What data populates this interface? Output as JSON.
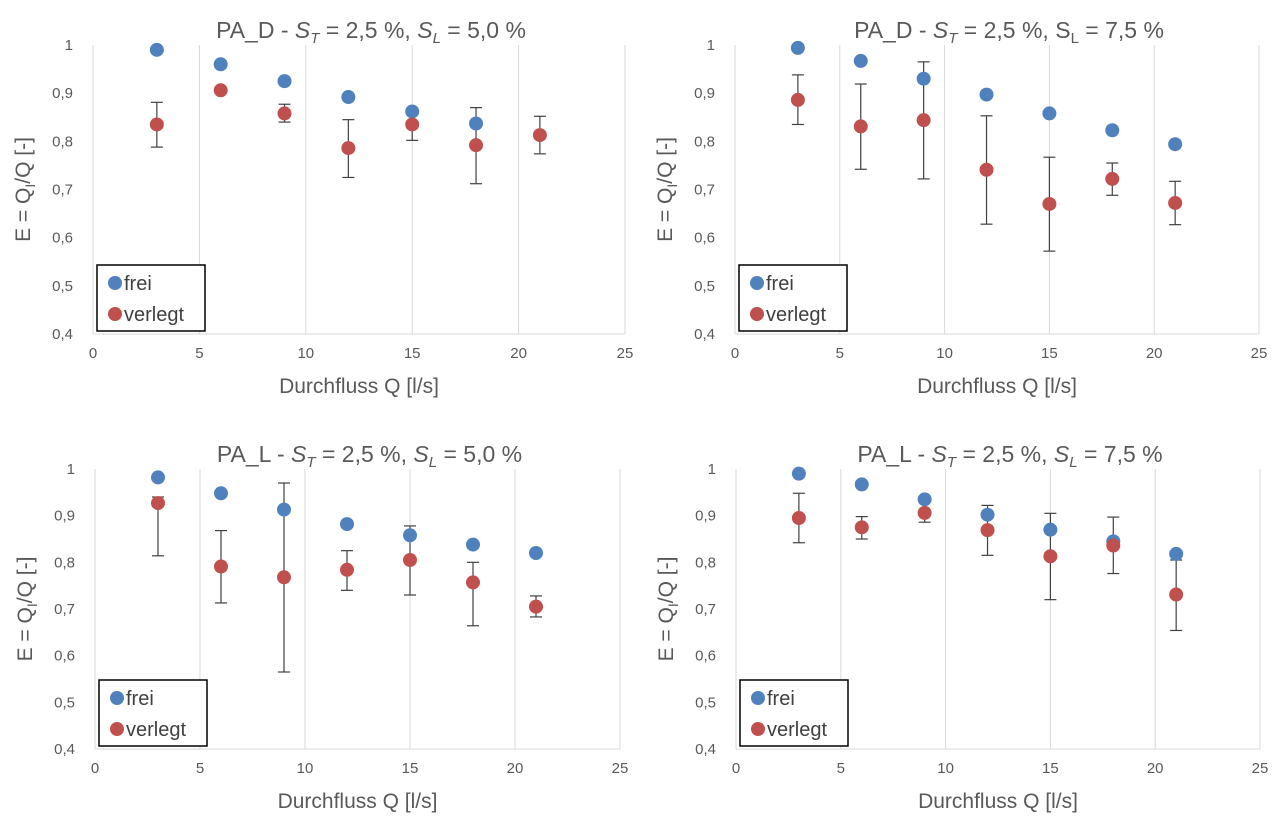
{
  "chart_data": [
    {
      "type": "scatter",
      "title": {
        "prefix": "PA_D - ",
        "st_sym": "S",
        "st_sub": "T",
        "st_val": " = 2,5 %, ",
        "sl_sym": "S",
        "sl_sub": "L",
        "sl_val": " = 5,0 %",
        "sl_italic": true
      },
      "xlabel": "Durchfluss Q [l/s]",
      "ylabel": {
        "pre": "E = Q",
        "sub": "I",
        "post": "/Q [-]"
      },
      "xlim": [
        0,
        25
      ],
      "ylim": [
        0.4,
        1
      ],
      "x_ticks": [
        "0",
        "5",
        "10",
        "15",
        "20",
        "25"
      ],
      "y_ticks": [
        "0,4",
        "0,5",
        "0,6",
        "0,7",
        "0,8",
        "0,9",
        "1"
      ],
      "grid": "vertical",
      "legend": "bottom-left",
      "series": [
        {
          "name": "frei",
          "color": "#4f81bd",
          "x": [
            3,
            6,
            9,
            12,
            15,
            18
          ],
          "y": [
            0.99,
            0.96,
            0.925,
            0.892,
            0.862,
            0.837
          ]
        },
        {
          "name": "verlegt",
          "color": "#c0504d",
          "x": [
            3,
            6,
            9,
            12,
            15,
            18,
            21
          ],
          "y": [
            0.835,
            0.906,
            0.858,
            0.786,
            0.835,
            0.792,
            0.813
          ],
          "err_low": [
            0.788,
            null,
            0.84,
            0.725,
            0.802,
            0.712,
            0.774
          ],
          "err_high": [
            0.881,
            null,
            0.877,
            0.845,
            0.868,
            0.87,
            0.852
          ]
        }
      ]
    },
    {
      "type": "scatter",
      "title": {
        "prefix": "PA_D - ",
        "st_sym": "S",
        "st_sub": "T",
        "st_val": " = 2,5 %, ",
        "sl_sym": "S",
        "sl_sub": "L",
        "sl_val": " = 7,5 %",
        "sl_italic": false
      },
      "xlabel": "Durchfluss Q [l/s]",
      "ylabel": {
        "pre": "E = Q",
        "sub": "I",
        "post": "/Q [-]"
      },
      "xlim": [
        0,
        25
      ],
      "ylim": [
        0.4,
        1
      ],
      "x_ticks": [
        "0",
        "5",
        "10",
        "15",
        "20",
        "25"
      ],
      "y_ticks": [
        "0,4",
        "0,5",
        "0,6",
        "0,7",
        "0,8",
        "0,9",
        "1"
      ],
      "grid": "vertical",
      "legend": "bottom-left",
      "series": [
        {
          "name": "frei",
          "color": "#4f81bd",
          "x": [
            3,
            6,
            9,
            12,
            15,
            18,
            21
          ],
          "y": [
            0.994,
            0.967,
            0.93,
            0.897,
            0.858,
            0.823,
            0.794
          ]
        },
        {
          "name": "verlegt",
          "color": "#c0504d",
          "x": [
            3,
            6,
            9,
            12,
            15,
            18,
            21
          ],
          "y": [
            0.886,
            0.831,
            0.844,
            0.741,
            0.67,
            0.722,
            0.672
          ],
          "err_low": [
            0.835,
            0.742,
            0.722,
            0.628,
            0.572,
            0.688,
            0.627
          ],
          "err_high": [
            0.938,
            0.919,
            0.965,
            0.853,
            0.767,
            0.755,
            0.717
          ]
        }
      ]
    },
    {
      "type": "scatter",
      "title": {
        "prefix": "PA_L - ",
        "st_sym": "S",
        "st_sub": "T",
        "st_val": " = 2,5 %, ",
        "sl_sym": "S",
        "sl_sub": "L",
        "sl_val": " = 5,0 %",
        "sl_italic": true
      },
      "xlabel": "Durchfluss Q [l/s]",
      "ylabel": {
        "pre": "E = Q",
        "sub": "I",
        "post": "/Q [-]"
      },
      "xlim": [
        0,
        25
      ],
      "ylim": [
        0.4,
        1
      ],
      "x_ticks": [
        "0",
        "5",
        "10",
        "15",
        "20",
        "25"
      ],
      "y_ticks": [
        "0,4",
        "0,5",
        "0,6",
        "0,7",
        "0,8",
        "0,9",
        "1"
      ],
      "grid": "vertical",
      "legend": "bottom-left",
      "series": [
        {
          "name": "frei",
          "color": "#4f81bd",
          "x": [
            3,
            6,
            9,
            12,
            15,
            18,
            21
          ],
          "y": [
            0.982,
            0.948,
            0.913,
            0.882,
            0.858,
            0.838,
            0.82
          ]
        },
        {
          "name": "verlegt",
          "color": "#c0504d",
          "x": [
            3,
            6,
            9,
            12,
            15,
            18,
            21
          ],
          "y": [
            0.927,
            0.791,
            0.768,
            0.784,
            0.805,
            0.757,
            0.705
          ],
          "err_low": [
            0.814,
            0.713,
            0.565,
            0.74,
            0.73,
            0.664,
            0.683
          ],
          "err_high": [
            0.94,
            0.868,
            0.97,
            0.825,
            0.878,
            0.8,
            0.728
          ]
        }
      ]
    },
    {
      "type": "scatter",
      "title": {
        "prefix": "PA_L - ",
        "st_sym": "S",
        "st_sub": "T",
        "st_val": " = 2,5 %, ",
        "sl_sym": "S",
        "sl_sub": "L",
        "sl_val": " = 7,5 %",
        "sl_italic": true
      },
      "xlabel": "Durchfluss Q [l/s]",
      "ylabel": {
        "pre": "E = Q",
        "sub": "I",
        "post": "/Q [-]"
      },
      "xlim": [
        0,
        25
      ],
      "ylim": [
        0.4,
        1
      ],
      "x_ticks": [
        "0",
        "5",
        "10",
        "15",
        "20",
        "25"
      ],
      "y_ticks": [
        "0,4",
        "0,5",
        "0,6",
        "0,7",
        "0,8",
        "0,9",
        "1"
      ],
      "grid": "vertical",
      "legend": "bottom-left",
      "series": [
        {
          "name": "frei",
          "color": "#4f81bd",
          "x": [
            3,
            6,
            9,
            12,
            15,
            18,
            21
          ],
          "y": [
            0.99,
            0.967,
            0.935,
            0.902,
            0.87,
            0.845,
            0.818
          ]
        },
        {
          "name": "verlegt",
          "color": "#c0504d",
          "x": [
            3,
            6,
            9,
            12,
            15,
            18,
            21
          ],
          "y": [
            0.895,
            0.875,
            0.906,
            0.869,
            0.813,
            0.836,
            0.731
          ],
          "err_low": [
            0.842,
            0.85,
            0.886,
            0.815,
            0.72,
            0.776,
            0.654
          ],
          "err_high": [
            0.948,
            0.898,
            0.913,
            0.922,
            0.905,
            0.897,
            0.805
          ]
        }
      ]
    }
  ]
}
